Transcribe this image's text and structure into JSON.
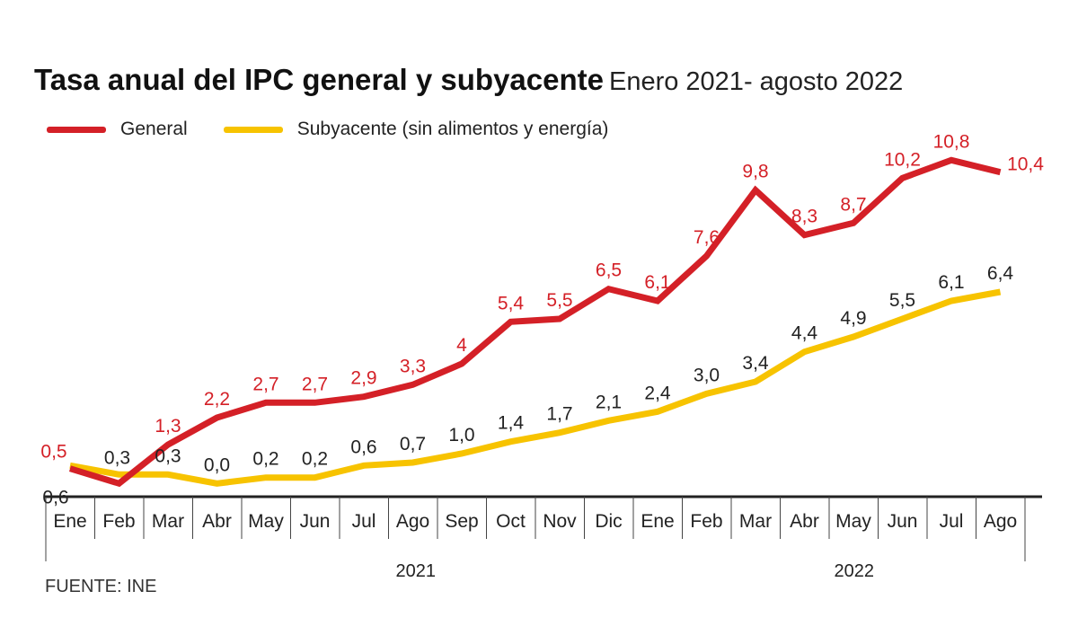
{
  "title": "Tasa anual del IPC general y subyacente",
  "subtitle": "Enero 2021- agosto 2022",
  "source": "FUENTE: INE",
  "colors": {
    "general": "#d42027",
    "subyacente": "#f7c300",
    "axis": "#222222"
  },
  "chart_data": {
    "type": "line",
    "categories": [
      "Ene",
      "Feb",
      "Mar",
      "Abr",
      "May",
      "Jun",
      "Jul",
      "Ago",
      "Sep",
      "Oct",
      "Nov",
      "Dic",
      "Ene",
      "Feb",
      "Mar",
      "Abr",
      "May",
      "Jun",
      "Jul",
      "Ago"
    ],
    "years": [
      {
        "label": "2021",
        "span": [
          0,
          11
        ]
      },
      {
        "label": "2022",
        "span": [
          12,
          19
        ]
      }
    ],
    "series": [
      {
        "name": "General",
        "values": [
          0.5,
          0.0,
          1.3,
          2.2,
          2.7,
          2.7,
          2.9,
          3.3,
          4.0,
          5.4,
          5.5,
          6.5,
          6.1,
          7.6,
          9.8,
          8.3,
          8.7,
          10.2,
          10.8,
          10.4
        ],
        "labels": [
          "0,5",
          "",
          "1,3",
          "2,2",
          "2,7",
          "2,7",
          "2,9",
          "3,3",
          "4",
          "5,4",
          "5,5",
          "6,5",
          "6,1",
          "7,6",
          "9,8",
          "8,3",
          "8,7",
          "10,2",
          "10,8",
          "10,4"
        ]
      },
      {
        "name": "Subyacente (sin alimentos y energía)",
        "values": [
          0.6,
          0.3,
          0.3,
          0.0,
          0.2,
          0.2,
          0.6,
          0.7,
          1.0,
          1.4,
          1.7,
          2.1,
          2.4,
          3.0,
          3.4,
          4.4,
          4.9,
          5.5,
          6.1,
          6.4
        ],
        "labels": [
          "0,6",
          "0,3",
          "0,3",
          "0,0",
          "0,2",
          "0,2",
          "0,6",
          "0,7",
          "1,0",
          "1,4",
          "1,7",
          "2,1",
          "2,4",
          "3,0",
          "3,4",
          "4,4",
          "4,9",
          "5,5",
          "6,1",
          "6,4"
        ]
      }
    ],
    "xlabel": "",
    "ylabel": "",
    "ylim": [
      -0.5,
      11.5
    ],
    "grid": false,
    "legend": "top-left"
  }
}
